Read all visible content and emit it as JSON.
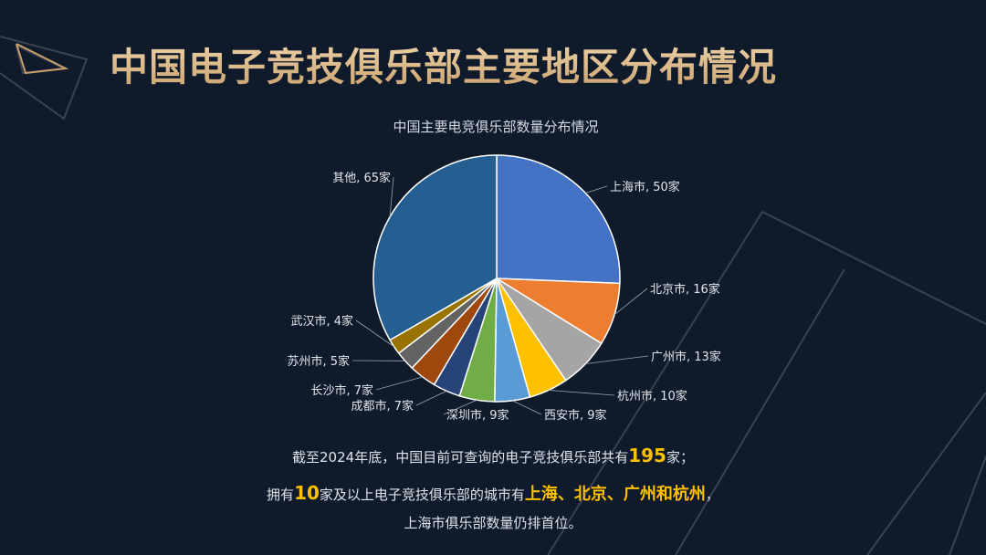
{
  "page_title": "中国电子竞技俱乐部主要地区分布情况",
  "colors": {
    "background": "#0f1a2b",
    "title_gold": "#d9b98a",
    "highlight": "#ffc000"
  },
  "chart_data": {
    "type": "pie",
    "title": "中国主要电竞俱乐部数量分布情况",
    "unit": "家",
    "slices": [
      {
        "name": "上海市",
        "value": 50,
        "label": "上海市, 50家",
        "color": "#4472c4"
      },
      {
        "name": "北京市",
        "value": 16,
        "label": "北京市, 16家",
        "color": "#ed7d31"
      },
      {
        "name": "广州市",
        "value": 13,
        "label": "广州市, 13家",
        "color": "#a5a5a5"
      },
      {
        "name": "杭州市",
        "value": 10,
        "label": "杭州市, 10家",
        "color": "#ffc000"
      },
      {
        "name": "西安市",
        "value": 9,
        "label": "西安市, 9家",
        "color": "#5b9bd5"
      },
      {
        "name": "深圳市",
        "value": 9,
        "label": "深圳市, 9家",
        "color": "#70ad47"
      },
      {
        "name": "成都市",
        "value": 7,
        "label": "成都市, 7家",
        "color": "#264478"
      },
      {
        "name": "长沙市",
        "value": 7,
        "label": "长沙市, 7家",
        "color": "#9e480e"
      },
      {
        "name": "苏州市",
        "value": 5,
        "label": "苏州市, 5家",
        "color": "#636363"
      },
      {
        "name": "武汉市",
        "value": 4,
        "label": "武汉市, 4家",
        "color": "#997300"
      },
      {
        "name": "其他",
        "value": 65,
        "label": "其他, 65家",
        "color": "#255e91"
      }
    ]
  },
  "summary": {
    "line1_pre": "截至2024年底，中国目前可查询的电子竞技俱乐部共有",
    "line1_num": "195",
    "line1_post": "家；",
    "line2_pre": "拥有",
    "line2_num": "10",
    "line2_mid": "家及以上电子竞技俱乐部的城市有",
    "line2_cities": "上海、北京、广州和杭州",
    "line2_post": "，",
    "line3": "上海市俱乐部数量仍排首位。"
  }
}
